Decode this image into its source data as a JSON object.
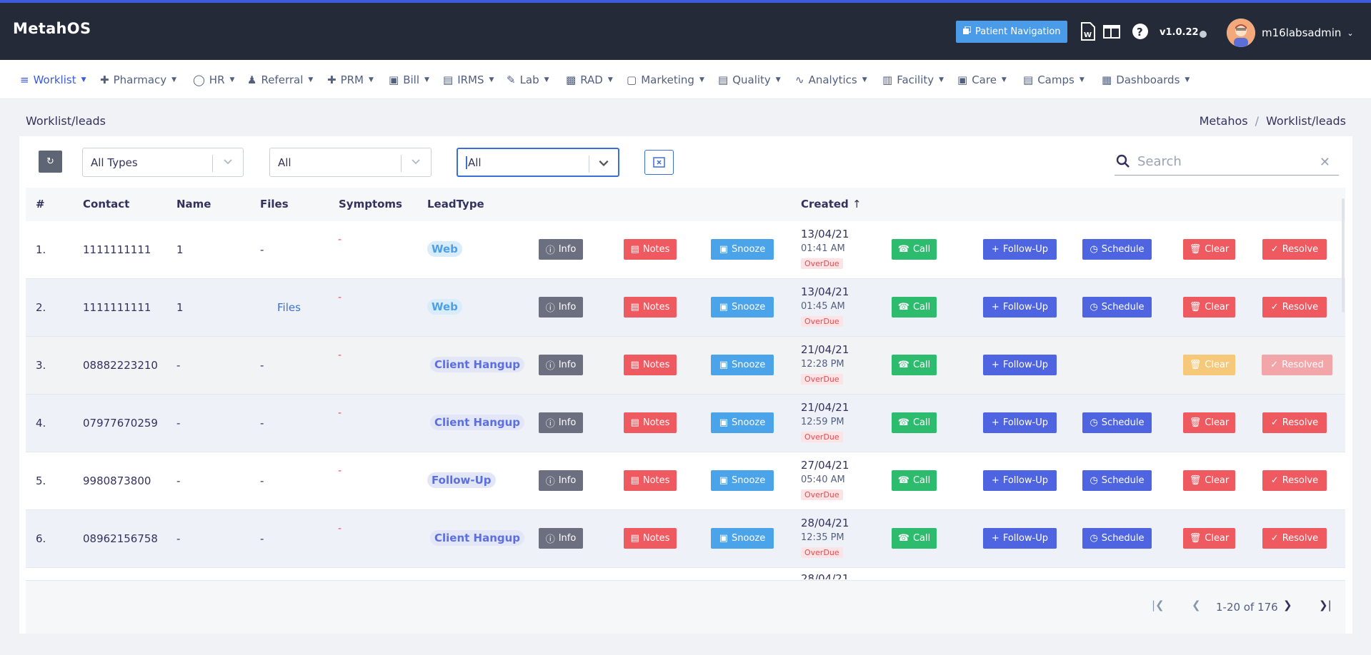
{
  "app": {
    "title": "MetahOS",
    "version": "v1.0.22",
    "user": "m16labsadmin"
  },
  "header": {
    "patient_nav": "Patient Navigation"
  },
  "nav": [
    "Worklist",
    "Pharmacy",
    "HR",
    "Referral",
    "PRM",
    "Bill",
    "IRMS",
    "Lab",
    "RAD",
    "Marketing",
    "Quality",
    "Analytics",
    "Facility",
    "Care",
    "Camps",
    "Dashboards"
  ],
  "page": {
    "title": "Worklist/leads",
    "breadcrumb": [
      "Metahos",
      "Worklist/leads"
    ]
  },
  "filters": {
    "types": "All Types",
    "second": "All",
    "third": "All",
    "search_placeholder": "Search"
  },
  "columns": {
    "num": "#",
    "contact": "Contact",
    "name": "Name",
    "files": "Files",
    "symptoms": "Symptoms",
    "leadtype": "LeadType",
    "created": "Created"
  },
  "buttons": {
    "info": "Info",
    "notes": "Notes",
    "snooze": "Snooze",
    "call": "Call",
    "follow": "Follow-Up",
    "schedule": "Schedule",
    "clear": "Clear",
    "resolve": "Resolve",
    "resolved": "Resolved"
  },
  "overdue_label": "OverDue",
  "rows": [
    {
      "num": "1.",
      "contact": "1111111111",
      "name": "1",
      "files": "-",
      "symptoms": "-",
      "leadtype": "Web",
      "date": "13/04/21",
      "time": "01:41 AM"
    },
    {
      "num": "2.",
      "contact": "1111111111",
      "name": "1",
      "files": "Files",
      "symptoms": "-",
      "leadtype": "Web",
      "date": "13/04/21",
      "time": "01:45 AM"
    },
    {
      "num": "3.",
      "contact": "08882223210",
      "name": "-",
      "files": "-",
      "symptoms": "-",
      "leadtype": "Client Hangup",
      "date": "21/04/21",
      "time": "12:28 PM"
    },
    {
      "num": "4.",
      "contact": "07977670259",
      "name": "-",
      "files": "-",
      "symptoms": "-",
      "leadtype": "Client Hangup",
      "date": "21/04/21",
      "time": "12:59 PM"
    },
    {
      "num": "5.",
      "contact": "9980873800",
      "name": "-",
      "files": "-",
      "symptoms": "-",
      "leadtype": "Follow-Up",
      "date": "27/04/21",
      "time": "05:40 AM"
    },
    {
      "num": "6.",
      "contact": "08962156758",
      "name": "-",
      "files": "-",
      "symptoms": "-",
      "leadtype": "Client Hangup",
      "date": "28/04/21",
      "time": "12:35 PM"
    }
  ],
  "partial_date": "28/04/21",
  "pagination": {
    "text": "1-20 of 176"
  }
}
